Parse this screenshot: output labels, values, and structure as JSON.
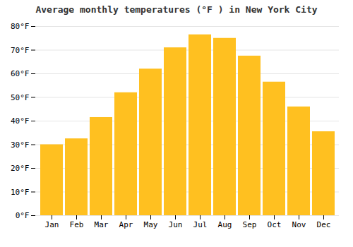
{
  "chart_data": {
    "type": "bar",
    "title": "Average monthly temperatures (°F ) in New York City",
    "categories": [
      "Jan",
      "Feb",
      "Mar",
      "Apr",
      "May",
      "Jun",
      "Jul",
      "Aug",
      "Sep",
      "Oct",
      "Nov",
      "Dec"
    ],
    "values": [
      30,
      32.5,
      41.5,
      52,
      62,
      71,
      76.5,
      75,
      67.5,
      56.5,
      46,
      35.5
    ],
    "color": "#FFC020",
    "ylim": [
      0,
      80
    ],
    "yticks": [
      {
        "value": 0,
        "label": "0°F"
      },
      {
        "value": 10,
        "label": "10°F"
      },
      {
        "value": 20,
        "label": "20°F"
      },
      {
        "value": 30,
        "label": "30°F"
      },
      {
        "value": 40,
        "label": "40°F"
      },
      {
        "value": 50,
        "label": "50°F"
      },
      {
        "value": 60,
        "label": "60°F"
      },
      {
        "value": 70,
        "label": "70°F"
      },
      {
        "value": 80,
        "label": "80°F"
      }
    ],
    "grid": true
  }
}
